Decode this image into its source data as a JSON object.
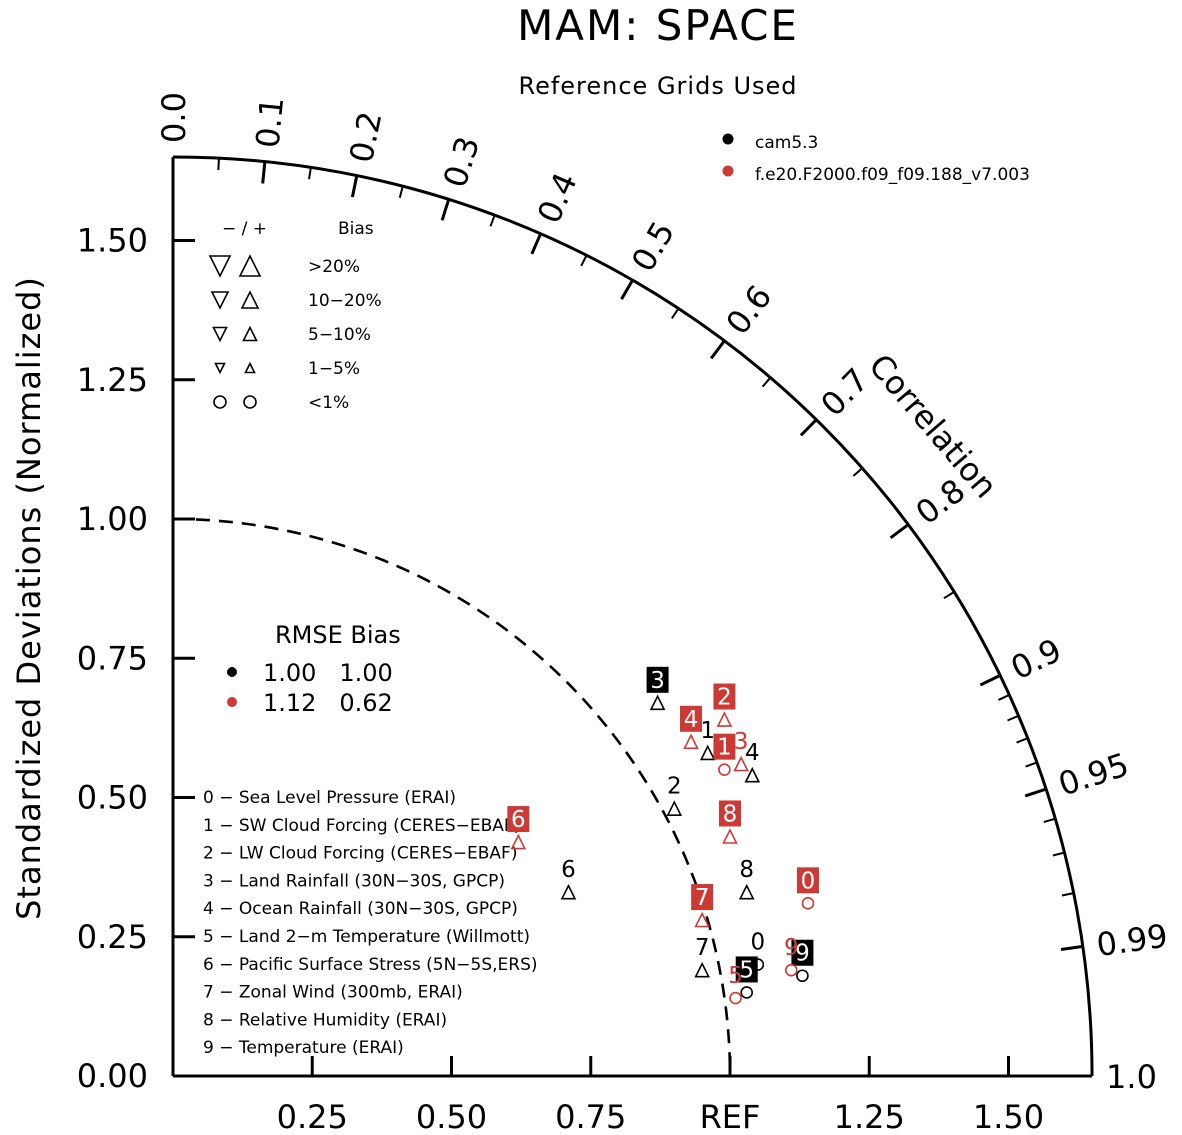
{
  "chart_data": {
    "type": "scatter",
    "chart_kind": "taylor diagram",
    "title": "MAM: SPACE",
    "subtitle": "Reference Grids Used",
    "ylabel": "Standardized Deviations (Normalized)",
    "correlation_label": "Correlation",
    "ref_label": "REF",
    "std_range": [
      0,
      1.65
    ],
    "std_ticks_y": [
      "0.00",
      "0.25",
      "0.50",
      "0.75",
      "1.00",
      "1.25",
      "1.50"
    ],
    "std_ticks_y_values": [
      0,
      0.25,
      0.5,
      0.75,
      1.0,
      1.25,
      1.5
    ],
    "std_ticks_x": [
      "0.25",
      "0.50",
      "0.75",
      "REF",
      "1.25",
      "1.50"
    ],
    "std_ticks_x_values": [
      0.25,
      0.5,
      0.75,
      1.0,
      1.25,
      1.5
    ],
    "correlation_ticks": [
      "0.0",
      "0.1",
      "0.2",
      "0.3",
      "0.4",
      "0.5",
      "0.6",
      "0.7",
      "0.8",
      "0.9",
      "0.95",
      "0.99",
      "1.0"
    ],
    "correlation_tick_values": [
      0.0,
      0.1,
      0.2,
      0.3,
      0.4,
      0.5,
      0.6,
      0.7,
      0.8,
      0.9,
      0.95,
      0.99,
      1.0
    ],
    "reference_arc_std": 1.0,
    "series": [
      {
        "name": "cam5.3",
        "color": "#000000",
        "rmse": "1.00",
        "bias": "1.00",
        "points": [
          {
            "id": "0",
            "x": 1.05,
            "y": 0.2,
            "marker": "circle",
            "box": false
          },
          {
            "id": "1",
            "x": 0.96,
            "y": 0.58,
            "marker": "triangle-up",
            "box": false
          },
          {
            "id": "2",
            "x": 0.9,
            "y": 0.48,
            "marker": "triangle-up",
            "box": false
          },
          {
            "id": "3",
            "x": 0.87,
            "y": 0.67,
            "marker": "triangle-up",
            "box": true
          },
          {
            "id": "4",
            "x": 1.04,
            "y": 0.54,
            "marker": "triangle-up",
            "box": false
          },
          {
            "id": "5",
            "x": 1.03,
            "y": 0.15,
            "marker": "circle",
            "box": true
          },
          {
            "id": "6",
            "x": 0.71,
            "y": 0.33,
            "marker": "triangle-up",
            "box": false
          },
          {
            "id": "7",
            "x": 0.95,
            "y": 0.19,
            "marker": "triangle-up",
            "box": false
          },
          {
            "id": "8",
            "x": 1.03,
            "y": 0.33,
            "marker": "triangle-up",
            "box": false
          },
          {
            "id": "9",
            "x": 1.13,
            "y": 0.18,
            "marker": "circle",
            "box": true
          }
        ]
      },
      {
        "name": "f.e20.F2000.f09_f09.188_v7.003",
        "color": "#cd3a36",
        "rmse": "1.12",
        "bias": "0.62",
        "points": [
          {
            "id": "0",
            "x": 1.14,
            "y": 0.31,
            "marker": "circle",
            "box": true
          },
          {
            "id": "1",
            "x": 0.99,
            "y": 0.55,
            "marker": "circle",
            "box": true
          },
          {
            "id": "2",
            "x": 0.99,
            "y": 0.64,
            "marker": "triangle-up",
            "box": true
          },
          {
            "id": "3",
            "x": 1.02,
            "y": 0.56,
            "marker": "triangle-up",
            "box": false
          },
          {
            "id": "4",
            "x": 0.93,
            "y": 0.6,
            "marker": "triangle-up",
            "box": true
          },
          {
            "id": "5",
            "x": 1.01,
            "y": 0.14,
            "marker": "circle",
            "box": false
          },
          {
            "id": "6",
            "x": 0.62,
            "y": 0.42,
            "marker": "triangle-up",
            "box": true
          },
          {
            "id": "7",
            "x": 0.95,
            "y": 0.28,
            "marker": "triangle-up",
            "box": true
          },
          {
            "id": "8",
            "x": 1.0,
            "y": 0.43,
            "marker": "triangle-up",
            "box": true
          },
          {
            "id": "9",
            "x": 1.11,
            "y": 0.19,
            "marker": "circle",
            "box": false
          }
        ]
      }
    ],
    "stats_table": {
      "header": "RMSE Bias",
      "rows": [
        {
          "values": "1.00   1.00",
          "color": "#000000"
        },
        {
          "values": "1.12   0.62",
          "color": "#cd3a36"
        }
      ]
    },
    "bias_key": {
      "header_signs": "− / +",
      "header_label": "Bias",
      "rows": [
        ">20%",
        "10−20%",
        "5−10%",
        "1−5%",
        "<1%"
      ]
    },
    "variables": [
      "0 − Sea Level Pressure (ERAI)",
      "1 − SW Cloud Forcing (CERES−EBAF)",
      "2 − LW Cloud Forcing (CERES−EBAF)",
      "3 − Land Rainfall (30N−30S, GPCP)",
      "4 − Ocean Rainfall (30N−30S, GPCP)",
      "5 − Land 2−m Temperature (Willmott)",
      "6 − Pacific Surface Stress (5N−5S,ERS)",
      "7 − Zonal Wind (300mb, ERAI)",
      "8 − Relative Humidity (ERAI)",
      "9 − Temperature (ERAI)"
    ]
  }
}
